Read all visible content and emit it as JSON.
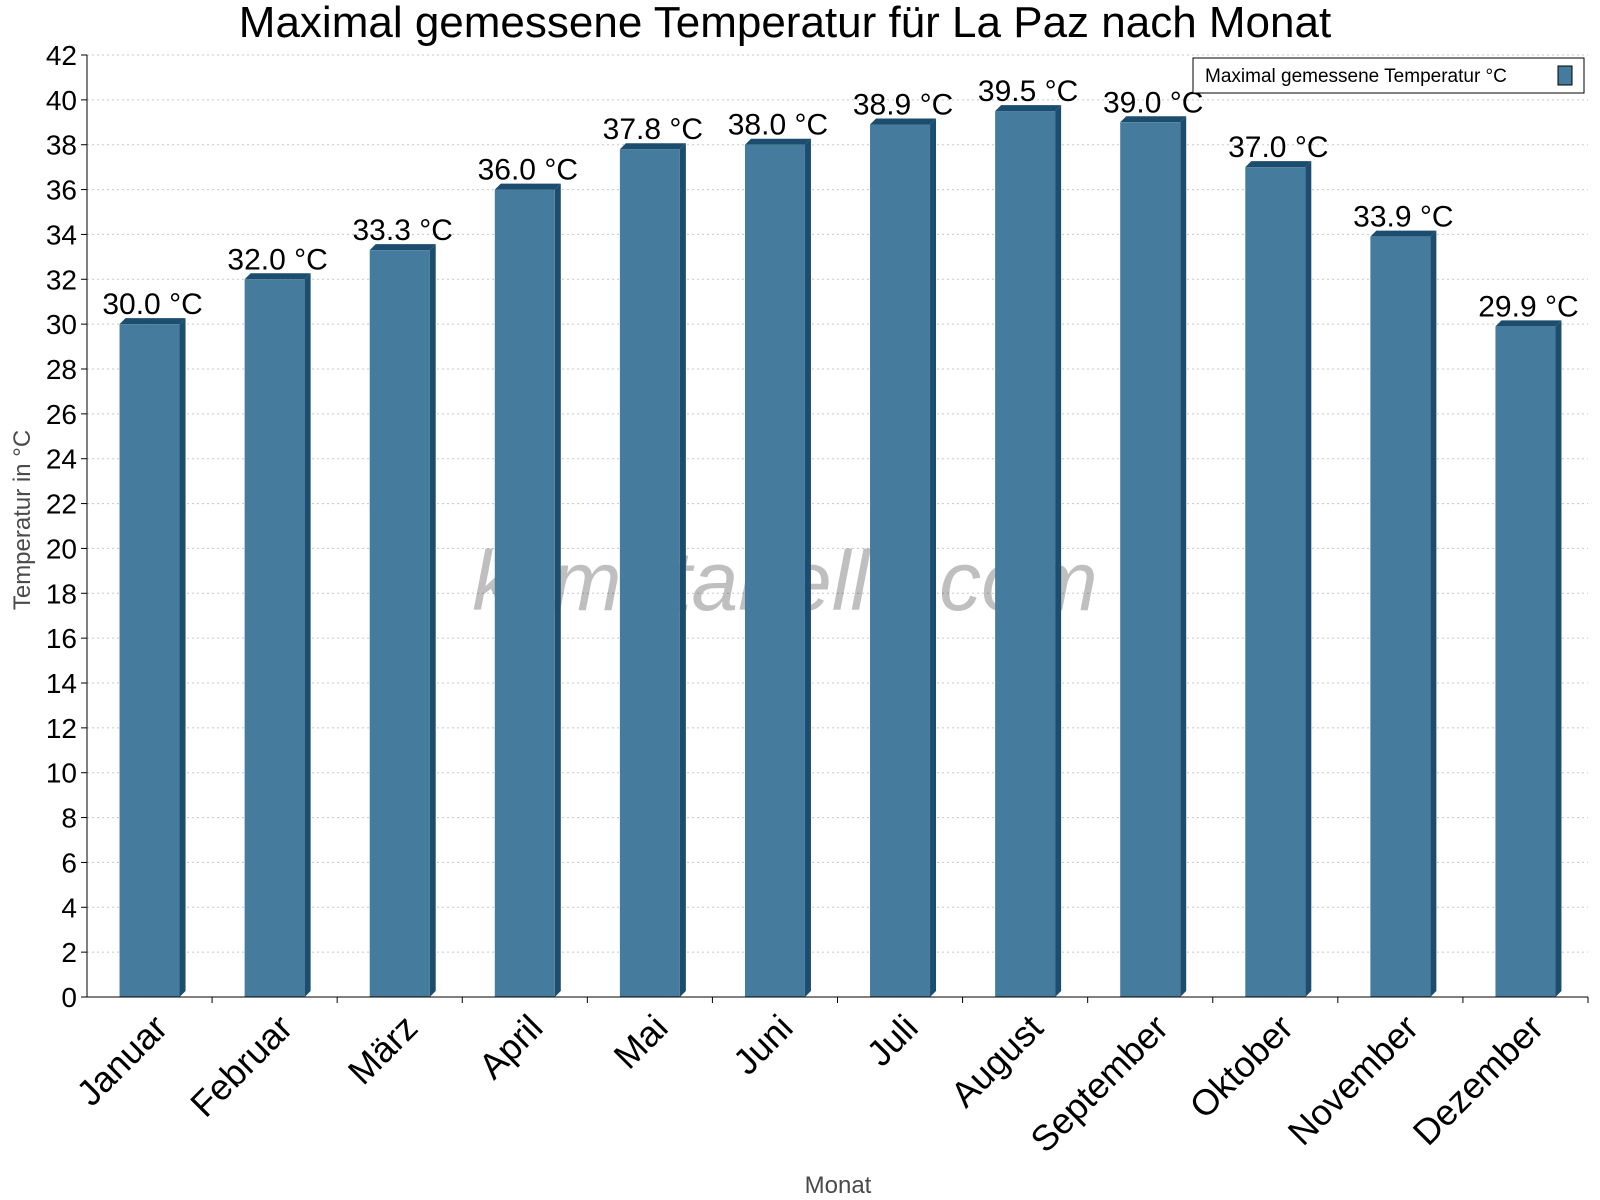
{
  "chart_data": {
    "type": "bar",
    "title": "Maximal gemessene Temperatur für La Paz nach Monat",
    "xlabel": "Monat",
    "ylabel": "Temperatur in °C",
    "categories": [
      "Januar",
      "Februar",
      "März",
      "April",
      "Mai",
      "Juni",
      "Juli",
      "August",
      "September",
      "Oktober",
      "November",
      "Dezember"
    ],
    "series": [
      {
        "name": "Maximal gemessene Temperatur °C",
        "values": [
          30.0,
          32.0,
          33.3,
          36.0,
          37.8,
          38.0,
          38.9,
          39.5,
          39.0,
          37.0,
          33.9,
          29.9
        ],
        "labels": [
          "30.0 °C",
          "32.0 °C",
          "33.3 °C",
          "36.0 °C",
          "37.8 °C",
          "38.0 °C",
          "38.9 °C",
          "39.5 °C",
          "39.0 °C",
          "37.0 °C",
          "33.9 °C",
          "29.9 °C"
        ]
      }
    ],
    "ylim": [
      0,
      42
    ],
    "ytick_step": 2,
    "grid": true,
    "legend_position": "top-right",
    "watermark": "klimatabelle.com",
    "colors": {
      "bar": "#457b9d",
      "bar_side": "#1d4d6e",
      "grid": "#c8c8c8"
    }
  }
}
